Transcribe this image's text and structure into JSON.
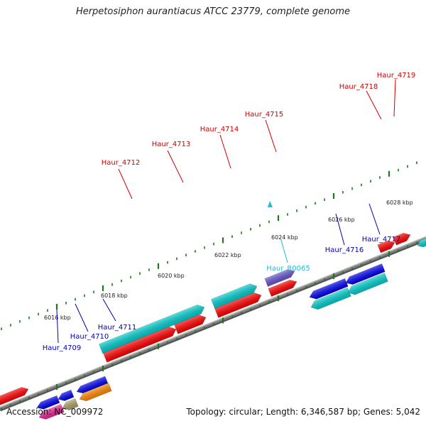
{
  "title": "Herpetosiphon aurantiacus ATCC 23779, complete genome",
  "footer": {
    "accession": "Accession: NC_009972",
    "stats": "Topology: circular; Length: 6,346,587 bp; Genes: 5,042"
  },
  "colors": {
    "backbone": "#808080",
    "tick": "#1a7a1a",
    "forward_label": "#cc0000",
    "reverse_label": "#0000aa",
    "rna_label": "#22bbdd"
  },
  "scale": {
    "ticks": [
      {
        "label": "6016 kbp"
      },
      {
        "label": "6018 kbp"
      },
      {
        "label": "6020 kbp"
      },
      {
        "label": "6022 kbp"
      },
      {
        "label": "6024 kbp"
      },
      {
        "label": "6026 kbp"
      },
      {
        "label": "6028 kbp"
      }
    ]
  },
  "genes": {
    "forward": [
      {
        "name": "Haur_4712",
        "color": "#ff0000"
      },
      {
        "name": "Haur_4713",
        "color": "#00cccc"
      },
      {
        "name": "Haur_4714",
        "color": "#ff0000"
      },
      {
        "name": "Haur_4715",
        "color": "#6655cc"
      },
      {
        "name": "Haur_4718",
        "color": "#ff0000"
      },
      {
        "name": "Haur_4719",
        "color": "#ff0000"
      }
    ],
    "reverse": [
      {
        "name": "Haur_4709",
        "color": "#ee2299"
      },
      {
        "name": "Haur_4710",
        "color": "#aaa066"
      },
      {
        "name": "Haur_4711",
        "color": "#ff8800"
      },
      {
        "name": "Haur_4716",
        "color": "#00cccc"
      },
      {
        "name": "Haur_4717",
        "color": "#00cccc"
      }
    ],
    "rna": [
      {
        "name": "Haur_R0065",
        "color": "#22bbdd"
      }
    ]
  }
}
